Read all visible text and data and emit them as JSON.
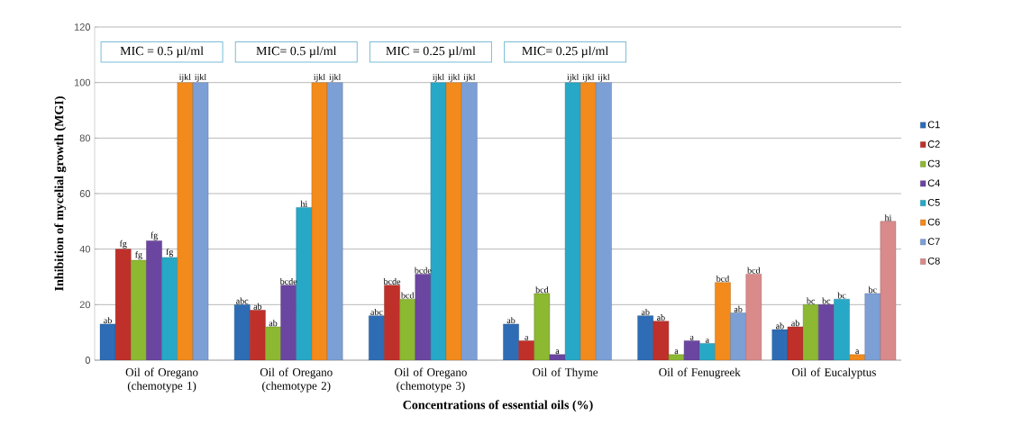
{
  "chart_data": {
    "type": "bar",
    "xlabel": "Concentrations of essential oils (%)",
    "ylabel": "Inhibition of mycelial growth (MGI)",
    "categories": [
      "Oil of Oregano (chemotype 1)",
      "Oil of Oregano (chemotype 2)",
      "Oil of Oregano (chemotype 3)",
      "Oil of Thyme",
      "Oil of Fenugreek",
      "Oil of Eucalyptus"
    ],
    "series": [
      {
        "name": "C1",
        "color": "#2e6db5",
        "values": [
          13,
          20,
          16,
          13,
          16,
          11
        ],
        "value_labels": [
          "ab",
          "abc",
          "abc",
          "ab",
          "ab",
          "ab"
        ]
      },
      {
        "name": "C2",
        "color": "#c0302a",
        "values": [
          40,
          18,
          27,
          7,
          14,
          12
        ],
        "value_labels": [
          "fg",
          "ab",
          "bcde",
          "a",
          "ab",
          "ab"
        ]
      },
      {
        "name": "C3",
        "color": "#8cb832",
        "values": [
          36,
          12,
          22,
          24,
          2,
          20
        ],
        "value_labels": [
          "fg",
          "ab",
          "bcd",
          "bcd",
          "a",
          "bc"
        ]
      },
      {
        "name": "C4",
        "color": "#6b46a0",
        "values": [
          43,
          27,
          31,
          2,
          7,
          20
        ],
        "value_labels": [
          "fg",
          "bcde",
          "bcde",
          "a",
          "a",
          "bc"
        ]
      },
      {
        "name": "C5",
        "color": "#27a8c6",
        "values": [
          37,
          55,
          100,
          100,
          6,
          22
        ],
        "value_labels": [
          "fg",
          "hi",
          "ijkl",
          "ijkl",
          "a",
          "bc"
        ]
      },
      {
        "name": "C6",
        "color": "#f28a1c",
        "values": [
          100,
          100,
          100,
          100,
          28,
          2
        ],
        "value_labels": [
          "ijkl",
          "ijkl",
          "ijkl",
          "ijkl",
          "bcd",
          "a"
        ]
      },
      {
        "name": "C7",
        "color": "#7c9fd6",
        "values": [
          100,
          100,
          100,
          100,
          17,
          24
        ],
        "value_labels": [
          "ijkl",
          "ijkl",
          "ijkl",
          "ijkl",
          "ab",
          "bc"
        ]
      },
      {
        "name": "C8",
        "color": "#d98a8a",
        "values": [
          null,
          null,
          null,
          null,
          31,
          50
        ],
        "value_labels": [
          null,
          null,
          null,
          null,
          "bcd",
          "hi"
        ]
      }
    ],
    "annotations": [
      "MIC = 0.5 µl/ml",
      "MIC= 0.5 µl/ml",
      "MIC = 0.25 µl/ml",
      "MIC= 0.25 µl/ml"
    ],
    "ylim": [
      0,
      120
    ],
    "yticks": [
      0,
      20,
      40,
      60,
      80,
      100,
      120
    ],
    "grid": "y",
    "legend": "right"
  }
}
